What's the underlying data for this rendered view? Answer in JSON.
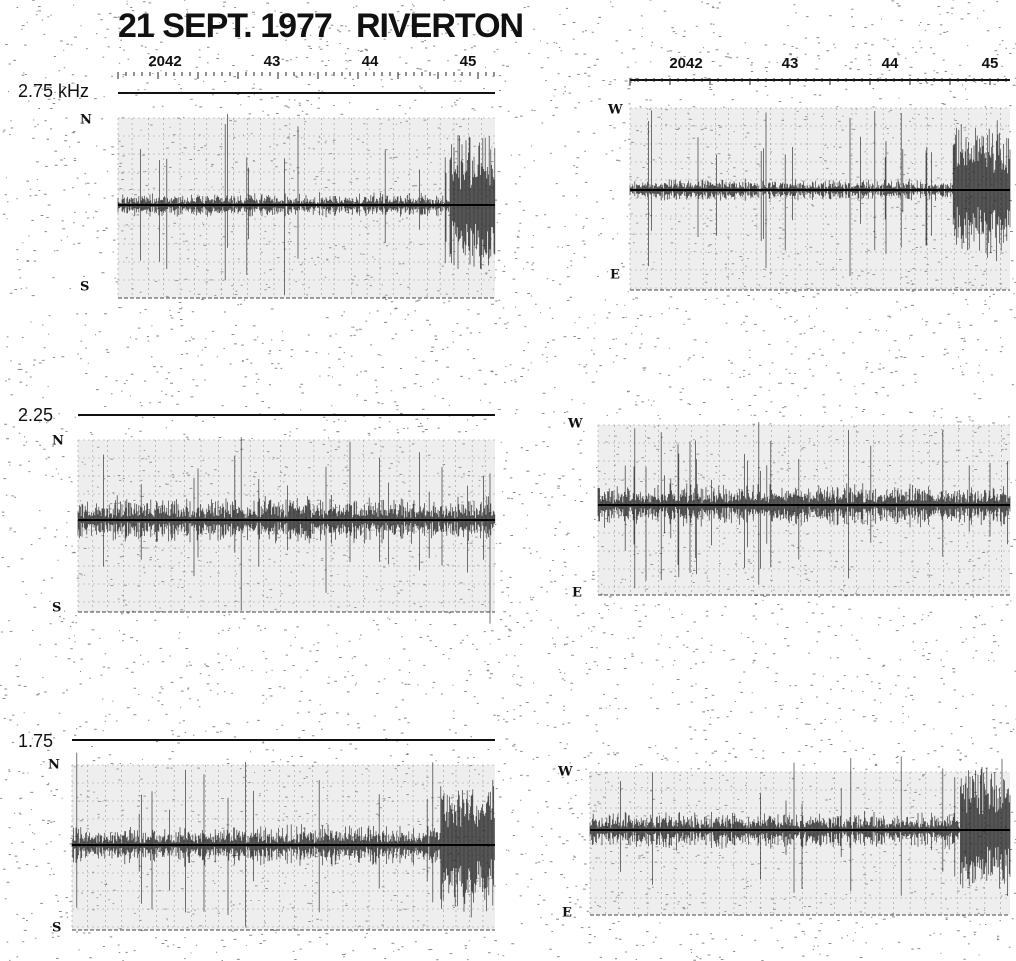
{
  "header": {
    "date": "21 SEPT. 1977",
    "location": "RIVERTON"
  },
  "time_axes": [
    {
      "labels": [
        "2042",
        "43",
        "44",
        "45"
      ]
    },
    {
      "labels": [
        "2042",
        "43",
        "44",
        "45"
      ]
    }
  ],
  "rows": [
    {
      "frequency": "2.75 kHz",
      "left_top": "N",
      "left_bottom": "S",
      "right_top": "W",
      "right_bottom": "E"
    },
    {
      "frequency": "2.25",
      "left_top": "N",
      "left_bottom": "S",
      "right_top": "W",
      "right_bottom": "E"
    },
    {
      "frequency": "1.75",
      "left_top": "N",
      "left_bottom": "S",
      "right_top": "W",
      "right_bottom": "E"
    }
  ]
}
